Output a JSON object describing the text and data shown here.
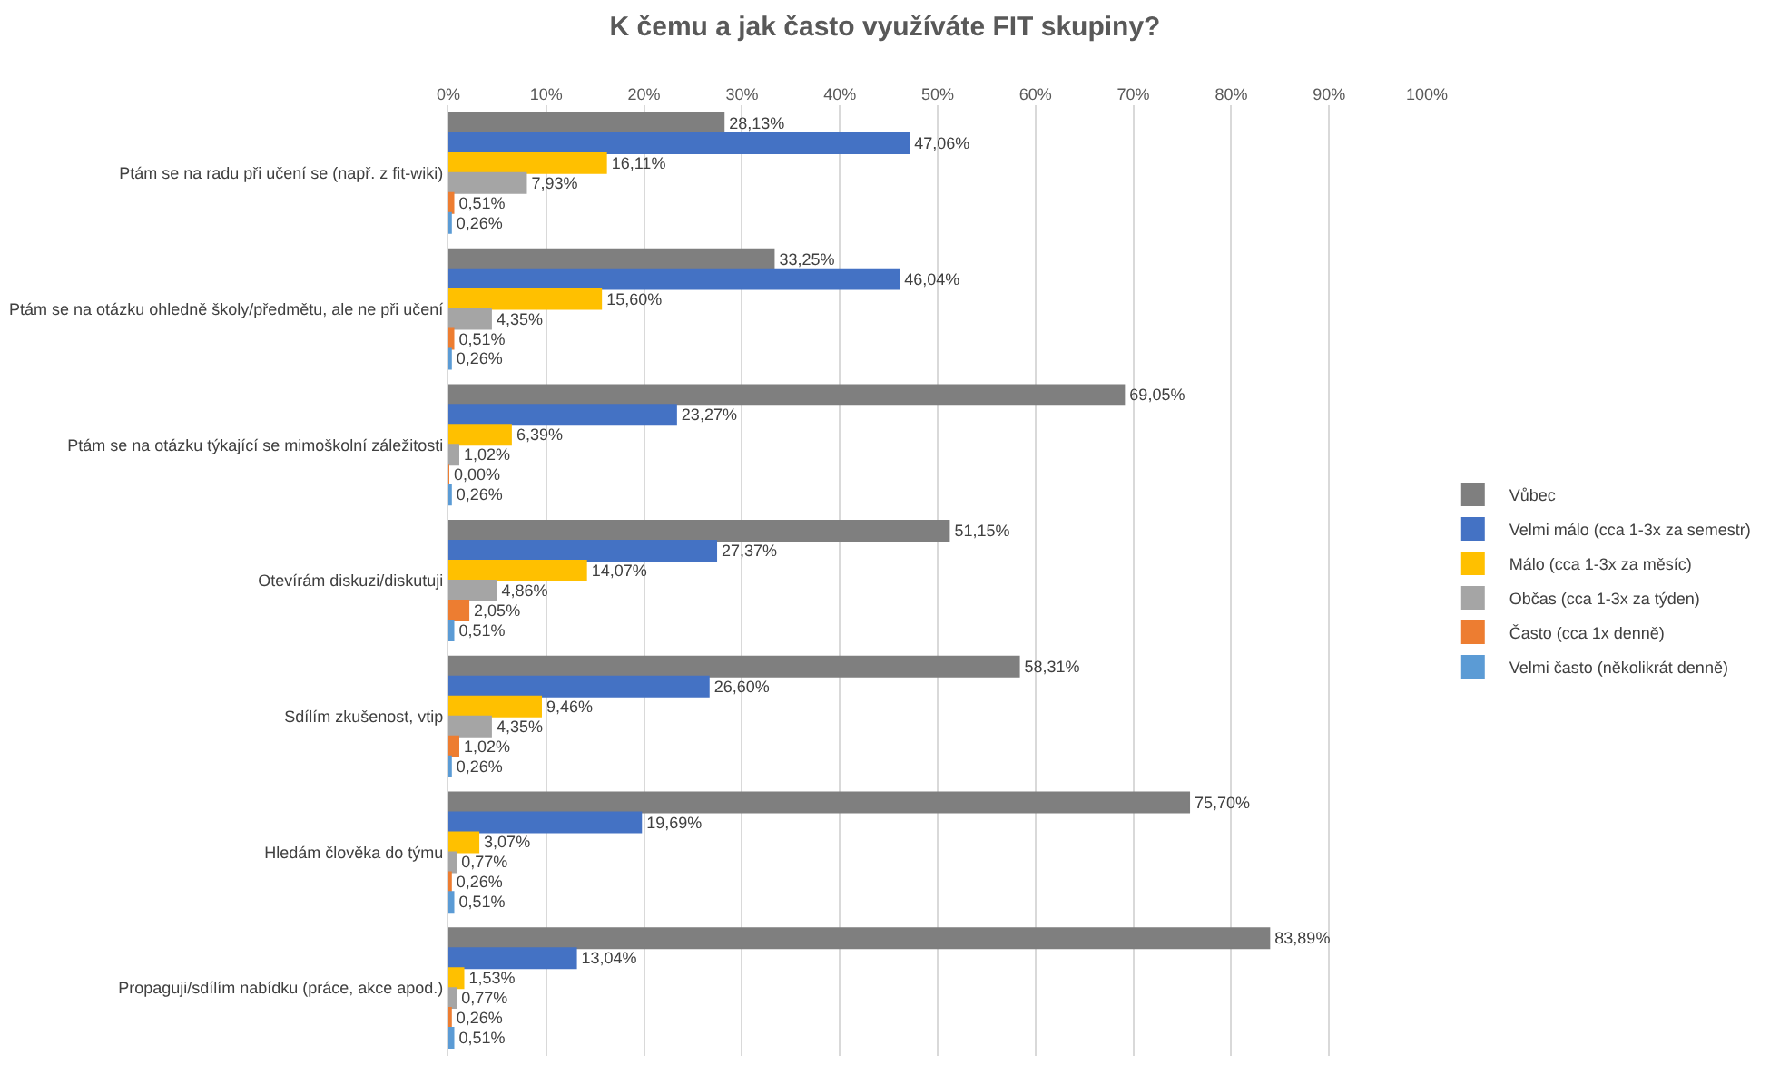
{
  "chart_data": {
    "type": "bar",
    "orientation": "horizontal",
    "title": "K čemu a jak často využíváte FIT skupiny?",
    "categories": [
      "Ptám se na radu při učení se (např. z fit-wiki)",
      "Ptám se na otázku ohledně školy/předmětu, ale ne při učení",
      "Ptám se na otázku týkající se mimoškolní záležitosti",
      "Otevírám diskuzi/diskutuji",
      "Sdílím zkušenost, vtip",
      "Hledám člověka do týmu",
      "Propaguji/sdílím nabídku (práce, akce apod.)"
    ],
    "series": [
      {
        "name": "Vůbec",
        "color": "#7f7f7f",
        "values": [
          28.13,
          33.25,
          69.05,
          51.15,
          58.31,
          75.7,
          83.89
        ],
        "value_labels": [
          "28,13%",
          "33,25%",
          "69,05%",
          "51,15%",
          "58,31%",
          "75,70%",
          "83,89%"
        ]
      },
      {
        "name": "Velmi málo (cca 1-3x za semestr)",
        "color": "#4472c4",
        "values": [
          47.06,
          46.04,
          23.27,
          27.37,
          26.6,
          19.69,
          13.04
        ],
        "value_labels": [
          "47,06%",
          "46,04%",
          "23,27%",
          "27,37%",
          "26,60%",
          "19,69%",
          "13,04%"
        ]
      },
      {
        "name": "Málo (cca 1-3x za měsíc)",
        "color": "#ffc000",
        "values": [
          16.11,
          15.6,
          6.39,
          14.07,
          9.46,
          3.07,
          1.53
        ],
        "value_labels": [
          "16,11%",
          "15,60%",
          "6,39%",
          "14,07%",
          "9,46%",
          "3,07%",
          "1,53%"
        ]
      },
      {
        "name": "Občas (cca 1-3x za týden)",
        "color": "#a5a5a5",
        "values": [
          7.93,
          4.35,
          1.02,
          4.86,
          4.35,
          0.77,
          0.77
        ],
        "value_labels": [
          "7,93%",
          "4,35%",
          "1,02%",
          "4,86%",
          "4,35%",
          "0,77%",
          "0,77%"
        ]
      },
      {
        "name": "Často (cca 1x denně)",
        "color": "#ed7d31",
        "values": [
          0.51,
          0.51,
          0.0,
          2.05,
          1.02,
          0.26,
          0.26
        ],
        "value_labels": [
          "0,51%",
          "0,51%",
          "0,00%",
          "2,05%",
          "1,02%",
          "0,26%",
          "0,26%"
        ]
      },
      {
        "name": "Velmi často (několikrát denně)",
        "color": "#5b9bd5",
        "values": [
          0.26,
          0.26,
          0.26,
          0.51,
          0.26,
          0.51,
          0.51
        ],
        "value_labels": [
          "0,26%",
          "0,26%",
          "0,26%",
          "0,51%",
          "0,26%",
          "0,51%",
          "0,51%"
        ]
      }
    ],
    "xlim": [
      0,
      100
    ],
    "xticks": [
      {
        "value": 0,
        "label": "0%"
      },
      {
        "value": 10,
        "label": "10%"
      },
      {
        "value": 20,
        "label": "20%"
      },
      {
        "value": 30,
        "label": "30%"
      },
      {
        "value": 40,
        "label": "40%"
      },
      {
        "value": 50,
        "label": "50%"
      },
      {
        "value": 60,
        "label": "60%"
      },
      {
        "value": 70,
        "label": "70%"
      },
      {
        "value": 80,
        "label": "80%"
      },
      {
        "value": 90,
        "label": "90%"
      },
      {
        "value": 100,
        "label": "100%"
      }
    ],
    "grid": "x",
    "legend": "right"
  }
}
